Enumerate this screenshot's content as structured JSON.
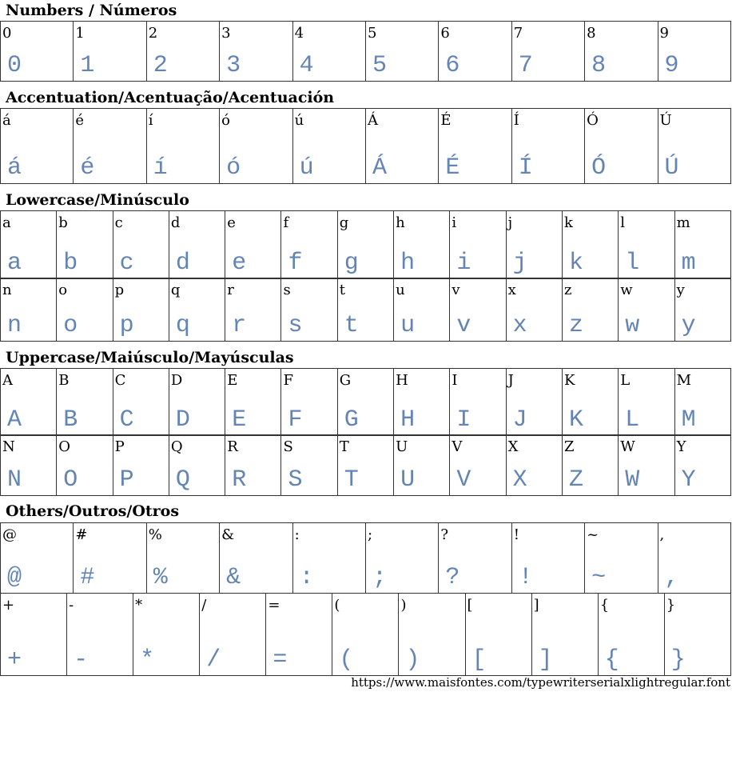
{
  "sections": [
    {
      "title": "Numbers / Números",
      "rows": [
        [
          "0",
          "1",
          "2",
          "3",
          "4",
          "5",
          "6",
          "7",
          "8",
          "9"
        ]
      ]
    },
    {
      "title": "Accentuation/Acentuação/Acentuación",
      "rows": [
        [
          "á",
          "é",
          "í",
          "ó",
          "ú",
          "Á",
          "É",
          "Í",
          "Ó",
          "Ú"
        ]
      ]
    },
    {
      "title": "Lowercase/Minúsculo",
      "rows": [
        [
          "a",
          "b",
          "c",
          "d",
          "e",
          "f",
          "g",
          "h",
          "i",
          "j",
          "k",
          "l",
          "m"
        ],
        [
          "n",
          "o",
          "p",
          "q",
          "r",
          "s",
          "t",
          "u",
          "v",
          "x",
          "z",
          "w",
          "y"
        ]
      ]
    },
    {
      "title": "Uppercase/Maiúsculo/Mayúsculas",
      "rows": [
        [
          "A",
          "B",
          "C",
          "D",
          "E",
          "F",
          "G",
          "H",
          "I",
          "J",
          "K",
          "L",
          "M"
        ],
        [
          "N",
          "O",
          "P",
          "Q",
          "R",
          "S",
          "T",
          "U",
          "V",
          "X",
          "Z",
          "W",
          "Y"
        ]
      ]
    },
    {
      "title": "Others/Outros/Otros",
      "rows": [
        [
          "@",
          "#",
          "%",
          "&",
          ":",
          ";",
          "?",
          "!",
          "~",
          ","
        ],
        [
          "+",
          "-",
          "*",
          "/",
          "=",
          "(",
          ")",
          "[",
          "]",
          "{",
          "}"
        ]
      ]
    }
  ],
  "footer": {
    "url": "https://www.maisfontes.com/typewriterserialxlightregular.font"
  },
  "colors": {
    "glyph": "#4a70a8",
    "border": "#333333"
  }
}
